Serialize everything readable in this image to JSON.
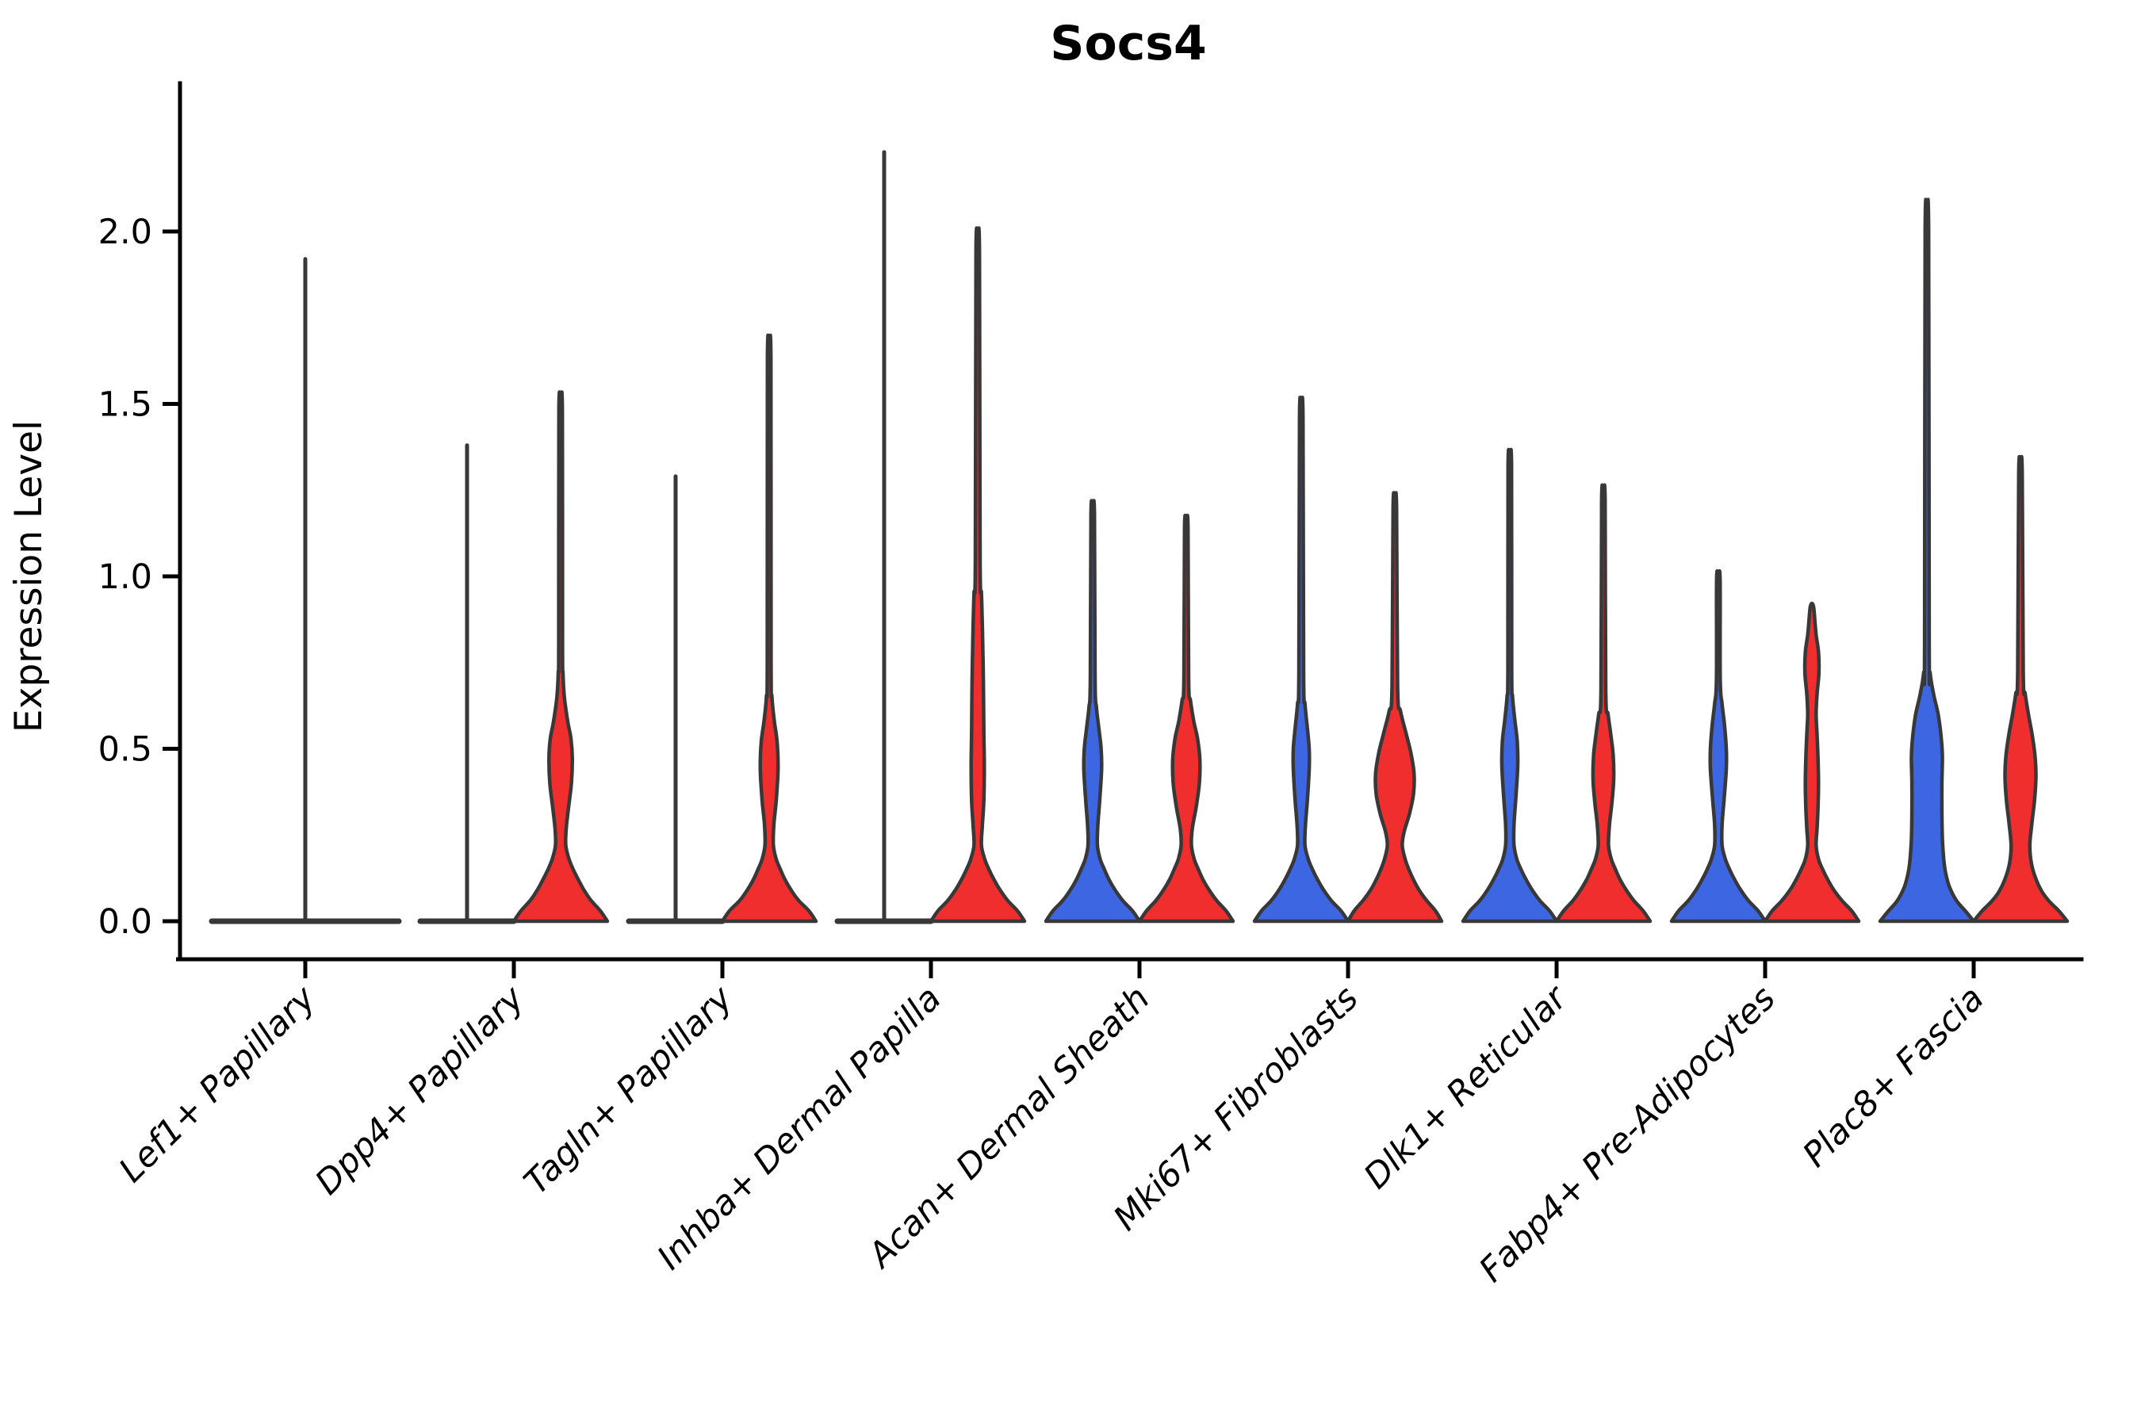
{
  "title": "Socs4",
  "y_axis": {
    "label": "Expression Level",
    "tick_labels": [
      "0.0",
      "0.5",
      "1.0",
      "1.5",
      "2.0"
    ],
    "tick_values": [
      0.0,
      0.5,
      1.0,
      1.5,
      2.0
    ]
  },
  "colors": {
    "group_blue": "#3D66E3",
    "group_red": "#F02E2E",
    "outline": "#383838",
    "axis": "#000000"
  },
  "chart_data": {
    "type": "violin",
    "title": "Socs4",
    "ylabel": "Expression Level",
    "ylim": [
      -0.11,
      2.43
    ],
    "grid": false,
    "legend": "none",
    "tick_values": [
      0.0,
      0.5,
      1.0,
      1.5,
      2.0
    ],
    "tick_labels": [
      "0.0",
      "0.5",
      "1.0",
      "1.5",
      "2.0"
    ],
    "categories": [
      "Lef1+ Papillary",
      "Dpp4+ Papillary",
      "Tagln+ Papillary",
      "Inhba+ Dermal Papilla",
      "Acan+ Dermal Sheath",
      "Mki67+ Fibroblasts",
      "Dlk1+ Reticular",
      "Fabp4+ Pre-Adipocytes",
      "Plac8+ Fascia"
    ],
    "violins": [
      {
        "category": "Lef1+ Papillary",
        "group": "unsplit",
        "side": "full",
        "flat": true,
        "max": 1.92
      },
      {
        "category": "Dpp4+ Papillary",
        "group": "blue",
        "side": "left",
        "flat": true,
        "max": 1.38
      },
      {
        "category": "Dpp4+ Papillary",
        "group": "red",
        "side": "right",
        "flat": false,
        "max": 1.48,
        "profile": [
          [
            0,
            1
          ],
          [
            0.03,
            0.85
          ],
          [
            0.06,
            0.65
          ],
          [
            0.09,
            0.5
          ],
          [
            0.12,
            0.38
          ],
          [
            0.15,
            0.27
          ],
          [
            0.18,
            0.18
          ],
          [
            0.22,
            0.11
          ],
          [
            0.27,
            0.12
          ],
          [
            0.33,
            0.17
          ],
          [
            0.4,
            0.23
          ],
          [
            0.47,
            0.25
          ],
          [
            0.53,
            0.22
          ],
          [
            0.58,
            0.15
          ],
          [
            0.65,
            0.08
          ],
          [
            0.72,
            0.05
          ],
          [
            0.8,
            0.04
          ]
        ]
      },
      {
        "category": "Tagln+ Papillary",
        "group": "blue",
        "side": "left",
        "flat": true,
        "max": 1.29
      },
      {
        "category": "Tagln+ Papillary",
        "group": "red",
        "side": "right",
        "flat": false,
        "max": 1.63,
        "profile": [
          [
            0,
            1
          ],
          [
            0.03,
            0.85
          ],
          [
            0.06,
            0.63
          ],
          [
            0.09,
            0.47
          ],
          [
            0.12,
            0.34
          ],
          [
            0.15,
            0.24
          ],
          [
            0.18,
            0.15
          ],
          [
            0.22,
            0.09
          ],
          [
            0.28,
            0.1
          ],
          [
            0.35,
            0.15
          ],
          [
            0.44,
            0.19
          ],
          [
            0.52,
            0.17
          ],
          [
            0.58,
            0.11
          ],
          [
            0.65,
            0.06
          ],
          [
            0.75,
            0.04
          ]
        ]
      },
      {
        "category": "Inhba+ Dermal Papilla",
        "group": "blue",
        "side": "left",
        "flat": true,
        "max": 2.23
      },
      {
        "category": "Inhba+ Dermal Papilla",
        "group": "red",
        "side": "right",
        "flat": false,
        "max": 1.94,
        "profile": [
          [
            0,
            1
          ],
          [
            0.03,
            0.85
          ],
          [
            0.06,
            0.64
          ],
          [
            0.09,
            0.48
          ],
          [
            0.12,
            0.35
          ],
          [
            0.15,
            0.24
          ],
          [
            0.18,
            0.15
          ],
          [
            0.22,
            0.08
          ],
          [
            0.28,
            0.1
          ],
          [
            0.35,
            0.13
          ],
          [
            0.45,
            0.14
          ],
          [
            0.55,
            0.13
          ],
          [
            0.7,
            0.12
          ],
          [
            0.85,
            0.1
          ],
          [
            0.95,
            0.08
          ],
          [
            1.05,
            0.05
          ]
        ]
      },
      {
        "category": "Acan+ Dermal Sheath",
        "group": "blue",
        "side": "left",
        "flat": false,
        "max": 1.18,
        "profile": [
          [
            0,
            1
          ],
          [
            0.03,
            0.85
          ],
          [
            0.06,
            0.64
          ],
          [
            0.09,
            0.48
          ],
          [
            0.12,
            0.35
          ],
          [
            0.15,
            0.25
          ],
          [
            0.18,
            0.16
          ],
          [
            0.22,
            0.1
          ],
          [
            0.28,
            0.11
          ],
          [
            0.35,
            0.15
          ],
          [
            0.44,
            0.19
          ],
          [
            0.5,
            0.18
          ],
          [
            0.56,
            0.13
          ],
          [
            0.62,
            0.08
          ],
          [
            0.7,
            0.05
          ]
        ]
      },
      {
        "category": "Acan+ Dermal Sheath",
        "group": "red",
        "side": "right",
        "flat": false,
        "max": 1.14,
        "profile": [
          [
            0,
            1
          ],
          [
            0.03,
            0.85
          ],
          [
            0.06,
            0.65
          ],
          [
            0.09,
            0.49
          ],
          [
            0.12,
            0.36
          ],
          [
            0.15,
            0.26
          ],
          [
            0.18,
            0.17
          ],
          [
            0.22,
            0.11
          ],
          [
            0.27,
            0.13
          ],
          [
            0.33,
            0.21
          ],
          [
            0.4,
            0.28
          ],
          [
            0.47,
            0.29
          ],
          [
            0.53,
            0.24
          ],
          [
            0.58,
            0.16
          ],
          [
            0.64,
            0.09
          ],
          [
            0.7,
            0.05
          ]
        ]
      },
      {
        "category": "Mki67+ Fibroblasts",
        "group": "blue",
        "side": "left",
        "flat": false,
        "max": 1.46,
        "profile": [
          [
            0,
            1
          ],
          [
            0.03,
            0.85
          ],
          [
            0.06,
            0.64
          ],
          [
            0.09,
            0.48
          ],
          [
            0.12,
            0.35
          ],
          [
            0.15,
            0.24
          ],
          [
            0.18,
            0.15
          ],
          [
            0.22,
            0.08
          ],
          [
            0.28,
            0.09
          ],
          [
            0.35,
            0.13
          ],
          [
            0.44,
            0.17
          ],
          [
            0.5,
            0.17
          ],
          [
            0.56,
            0.13
          ],
          [
            0.63,
            0.08
          ],
          [
            0.72,
            0.05
          ]
        ]
      },
      {
        "category": "Mki67+ Fibroblasts",
        "group": "red",
        "side": "right",
        "flat": false,
        "max": 1.2,
        "profile": [
          [
            0,
            1
          ],
          [
            0.03,
            0.87
          ],
          [
            0.06,
            0.68
          ],
          [
            0.09,
            0.52
          ],
          [
            0.12,
            0.4
          ],
          [
            0.15,
            0.3
          ],
          [
            0.18,
            0.22
          ],
          [
            0.22,
            0.16
          ],
          [
            0.26,
            0.2
          ],
          [
            0.31,
            0.31
          ],
          [
            0.37,
            0.4
          ],
          [
            0.43,
            0.41
          ],
          [
            0.49,
            0.34
          ],
          [
            0.55,
            0.23
          ],
          [
            0.61,
            0.12
          ],
          [
            0.68,
            0.06
          ]
        ]
      },
      {
        "category": "Dlk1+ Reticular",
        "group": "blue",
        "side": "left",
        "flat": false,
        "max": 1.32,
        "profile": [
          [
            0,
            1
          ],
          [
            0.03,
            0.85
          ],
          [
            0.06,
            0.64
          ],
          [
            0.09,
            0.48
          ],
          [
            0.12,
            0.35
          ],
          [
            0.15,
            0.24
          ],
          [
            0.18,
            0.15
          ],
          [
            0.22,
            0.09
          ],
          [
            0.28,
            0.09
          ],
          [
            0.36,
            0.13
          ],
          [
            0.45,
            0.17
          ],
          [
            0.52,
            0.16
          ],
          [
            0.58,
            0.11
          ],
          [
            0.65,
            0.06
          ],
          [
            0.73,
            0.04
          ]
        ]
      },
      {
        "category": "Dlk1+ Reticular",
        "group": "red",
        "side": "right",
        "flat": false,
        "max": 1.22,
        "profile": [
          [
            0,
            1
          ],
          [
            0.03,
            0.85
          ],
          [
            0.06,
            0.65
          ],
          [
            0.09,
            0.49
          ],
          [
            0.12,
            0.36
          ],
          [
            0.15,
            0.26
          ],
          [
            0.18,
            0.17
          ],
          [
            0.22,
            0.11
          ],
          [
            0.28,
            0.13
          ],
          [
            0.34,
            0.18
          ],
          [
            0.41,
            0.22
          ],
          [
            0.48,
            0.21
          ],
          [
            0.54,
            0.16
          ],
          [
            0.6,
            0.1
          ],
          [
            0.67,
            0.05
          ]
        ]
      },
      {
        "category": "Fabp4+ Pre-Adipocytes",
        "group": "blue",
        "side": "left",
        "flat": false,
        "max": 0.99,
        "profile": [
          [
            0,
            1
          ],
          [
            0.03,
            0.85
          ],
          [
            0.06,
            0.64
          ],
          [
            0.09,
            0.48
          ],
          [
            0.12,
            0.35
          ],
          [
            0.15,
            0.24
          ],
          [
            0.18,
            0.15
          ],
          [
            0.22,
            0.08
          ],
          [
            0.28,
            0.08
          ],
          [
            0.35,
            0.12
          ],
          [
            0.44,
            0.17
          ],
          [
            0.5,
            0.17
          ],
          [
            0.57,
            0.13
          ],
          [
            0.63,
            0.08
          ],
          [
            0.7,
            0.04
          ]
        ]
      },
      {
        "category": "Fabp4+ Pre-Adipocytes",
        "group": "red",
        "side": "right",
        "flat": false,
        "max": 0.91,
        "profile": [
          [
            0,
            1
          ],
          [
            0.03,
            0.85
          ],
          [
            0.06,
            0.64
          ],
          [
            0.09,
            0.47
          ],
          [
            0.12,
            0.34
          ],
          [
            0.15,
            0.23
          ],
          [
            0.18,
            0.14
          ],
          [
            0.22,
            0.09
          ],
          [
            0.27,
            0.11
          ],
          [
            0.33,
            0.13
          ],
          [
            0.4,
            0.14
          ],
          [
            0.47,
            0.13
          ],
          [
            0.54,
            0.11
          ],
          [
            0.6,
            0.09
          ],
          [
            0.66,
            0.11
          ],
          [
            0.72,
            0.15
          ],
          [
            0.78,
            0.14
          ],
          [
            0.83,
            0.09
          ],
          [
            0.86,
            0.07
          ]
        ]
      },
      {
        "category": "Plac8+ Fascia",
        "group": "blue",
        "side": "left",
        "flat": false,
        "max": 2.0,
        "profile": [
          [
            0,
            1
          ],
          [
            0.03,
            0.82
          ],
          [
            0.06,
            0.63
          ],
          [
            0.1,
            0.48
          ],
          [
            0.14,
            0.4
          ],
          [
            0.18,
            0.36
          ],
          [
            0.24,
            0.33
          ],
          [
            0.32,
            0.32
          ],
          [
            0.4,
            0.32
          ],
          [
            0.48,
            0.33
          ],
          [
            0.54,
            0.3
          ],
          [
            0.6,
            0.24
          ],
          [
            0.66,
            0.14
          ],
          [
            0.72,
            0.07
          ],
          [
            0.8,
            0.05
          ]
        ]
      },
      {
        "category": "Plac8+ Fascia",
        "group": "red",
        "side": "right",
        "flat": false,
        "max": 1.3,
        "profile": [
          [
            0,
            1
          ],
          [
            0.03,
            0.82
          ],
          [
            0.06,
            0.6
          ],
          [
            0.09,
            0.44
          ],
          [
            0.13,
            0.31
          ],
          [
            0.17,
            0.23
          ],
          [
            0.22,
            0.2
          ],
          [
            0.28,
            0.24
          ],
          [
            0.35,
            0.3
          ],
          [
            0.42,
            0.33
          ],
          [
            0.48,
            0.31
          ],
          [
            0.54,
            0.25
          ],
          [
            0.6,
            0.17
          ],
          [
            0.66,
            0.1
          ],
          [
            0.72,
            0.06
          ]
        ]
      }
    ]
  }
}
